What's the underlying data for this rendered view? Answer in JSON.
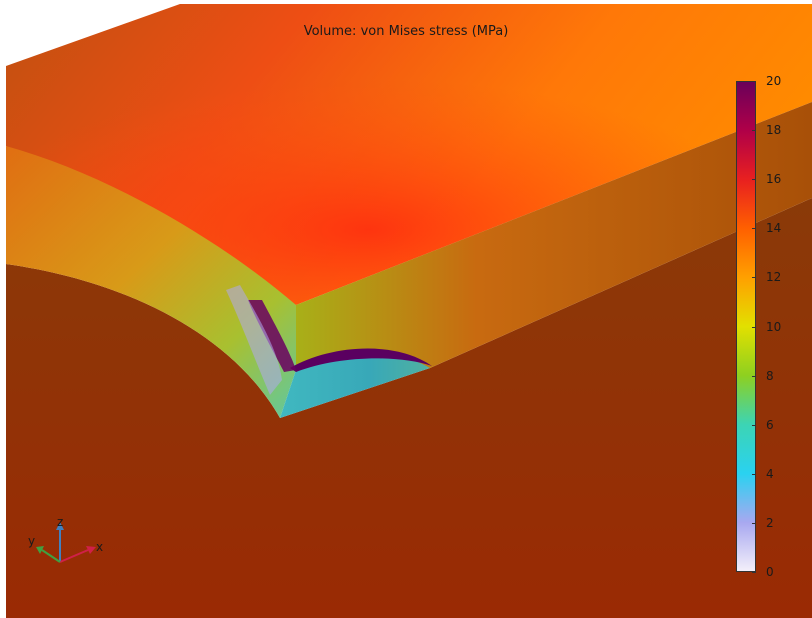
{
  "plot": {
    "title": "Volume: von Mises stress (MPa)"
  },
  "colorbar": {
    "min": 0,
    "max": 20,
    "ticks": [
      "0",
      "2",
      "4",
      "6",
      "8",
      "10",
      "12",
      "14",
      "16",
      "18",
      "20"
    ],
    "colormap": "Rainbow",
    "colors": [
      "#f4f0fa",
      "#a8a8f0",
      "#2ad2f0",
      "#3cd4b4",
      "#8ed020",
      "#e2e000",
      "#ffa000",
      "#ff6000",
      "#e82020",
      "#b00048",
      "#6a005a"
    ]
  },
  "axes_triad": {
    "x": "x",
    "y": "y",
    "z": "z",
    "colors": {
      "x": "#d02048",
      "y": "#40a040",
      "z": "#4080c0"
    }
  }
}
